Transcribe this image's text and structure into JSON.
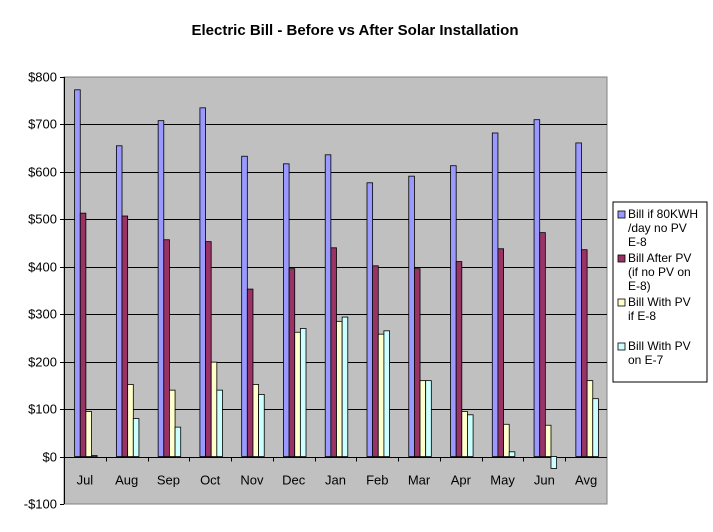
{
  "chart_data": {
    "type": "bar",
    "title": "Electric Bill  - Before vs After Solar Installation",
    "xlabel": "",
    "ylabel": "",
    "categories": [
      "Jul",
      "Aug",
      "Sep",
      "Oct",
      "Nov",
      "Dec",
      "Jan",
      "Feb",
      "Mar",
      "Apr",
      "May",
      "Jun",
      "Avg"
    ],
    "ylim": [
      -100,
      800
    ],
    "yticks": [
      -100,
      0,
      100,
      200,
      300,
      400,
      500,
      600,
      700,
      800
    ],
    "ytick_labels": [
      "-$100",
      "$0",
      "$100",
      "$200",
      "$300",
      "$400",
      "$500",
      "$600",
      "$700",
      "$800"
    ],
    "grid": true,
    "plot_background": "#c0c0c0",
    "legend_position": "right",
    "series": [
      {
        "name": "Bill if 80KWH /day no PV E-8",
        "legend_lines": [
          "Bill if 80KWH",
          "/day no PV",
          "E-8"
        ],
        "color": "#9999ff",
        "values": [
          773,
          655,
          708,
          735,
          633,
          617,
          636,
          577,
          591,
          613,
          682,
          710,
          661
        ]
      },
      {
        "name": "Bill After PV (if no PV on E-8)",
        "legend_lines": [
          "Bill After PV",
          "(if no PV on",
          "E-8)"
        ],
        "color": "#993366",
        "values": [
          513,
          507,
          457,
          453,
          353,
          396,
          440,
          402,
          396,
          411,
          438,
          472,
          436
        ]
      },
      {
        "name": "Bill With PV if E-8",
        "legend_lines": [
          "Bill With PV",
          "if E-8"
        ],
        "color": "#ffffcc",
        "values": [
          95,
          152,
          140,
          199,
          152,
          262,
          285,
          258,
          160,
          95,
          68,
          66,
          160
        ]
      },
      {
        "name": "Bill With PV on E-7",
        "legend_lines": [
          "Bill With PV",
          "on E-7"
        ],
        "color": "#ccffff",
        "values": [
          2,
          80,
          62,
          140,
          131,
          270,
          294,
          265,
          160,
          88,
          10,
          -25,
          122
        ]
      }
    ]
  }
}
